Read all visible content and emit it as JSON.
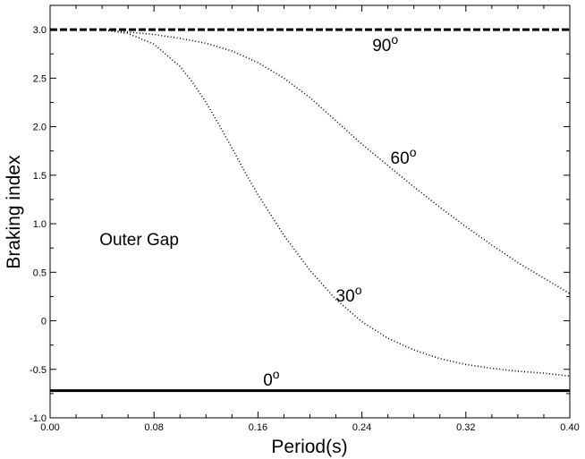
{
  "chart_data": {
    "type": "line",
    "xlabel": "Period(s)",
    "ylabel": "Braking index",
    "xlim": [
      0.0,
      0.4
    ],
    "ylim": [
      -1.0,
      3.25
    ],
    "x_ticks": [
      "0.00",
      "0.08",
      "0.16",
      "0.24",
      "0.32",
      "0.40"
    ],
    "y_ticks": [
      "-1.0",
      "-0.5",
      "0",
      "0.5",
      "1.0",
      "1.5",
      "2.0",
      "2.5",
      "3.0"
    ],
    "x_tick_values": [
      0.0,
      0.08,
      0.16,
      0.24,
      0.32,
      0.4
    ],
    "y_tick_values": [
      -1.0,
      -0.5,
      0,
      0.5,
      1.0,
      1.5,
      2.0,
      2.5,
      3.0
    ],
    "grid": false,
    "region_label": "Outer Gap",
    "series": [
      {
        "label": "90",
        "style": "dashed",
        "width": 3,
        "x": [
          0.0,
          0.4
        ],
        "y": [
          3.0,
          3.0
        ]
      },
      {
        "label": "60",
        "style": "dotted",
        "width": 2,
        "x": [
          0.04,
          0.08,
          0.1,
          0.12,
          0.14,
          0.16,
          0.18,
          0.2,
          0.22,
          0.24,
          0.26,
          0.28,
          0.3,
          0.32,
          0.34,
          0.36,
          0.38,
          0.4
        ],
        "y": [
          3.0,
          2.95,
          2.91,
          2.86,
          2.78,
          2.66,
          2.5,
          2.3,
          2.06,
          1.82,
          1.6,
          1.38,
          1.17,
          0.97,
          0.78,
          0.6,
          0.44,
          0.28
        ]
      },
      {
        "label": "30",
        "style": "dotted",
        "width": 2,
        "x": [
          0.04,
          0.06,
          0.08,
          0.1,
          0.11,
          0.12,
          0.13,
          0.14,
          0.15,
          0.16,
          0.18,
          0.2,
          0.22,
          0.24,
          0.26,
          0.28,
          0.3,
          0.32,
          0.34,
          0.36,
          0.38,
          0.4
        ],
        "y": [
          3.0,
          2.96,
          2.85,
          2.62,
          2.45,
          2.25,
          2.02,
          1.78,
          1.53,
          1.3,
          0.88,
          0.52,
          0.22,
          -0.01,
          -0.18,
          -0.3,
          -0.39,
          -0.45,
          -0.49,
          -0.52,
          -0.54,
          -0.57
        ]
      },
      {
        "label": "0",
        "style": "solid",
        "width": 3,
        "x": [
          0.0,
          0.4
        ],
        "y": [
          -0.72,
          -0.72
        ]
      }
    ],
    "annotations": [
      {
        "base": "90",
        "sup": "o",
        "x": 0.248,
        "y": 2.78,
        "series": "90"
      },
      {
        "base": "60",
        "sup": "o",
        "x": 0.262,
        "y": 1.62,
        "series": "60"
      },
      {
        "base": "30",
        "sup": "o",
        "x": 0.22,
        "y": 0.2,
        "series": "30"
      },
      {
        "base": "0",
        "sup": "o",
        "x": 0.164,
        "y": -0.67,
        "series": "0"
      }
    ],
    "region_anchor": {
      "x": 0.038,
      "y": 0.78
    }
  }
}
